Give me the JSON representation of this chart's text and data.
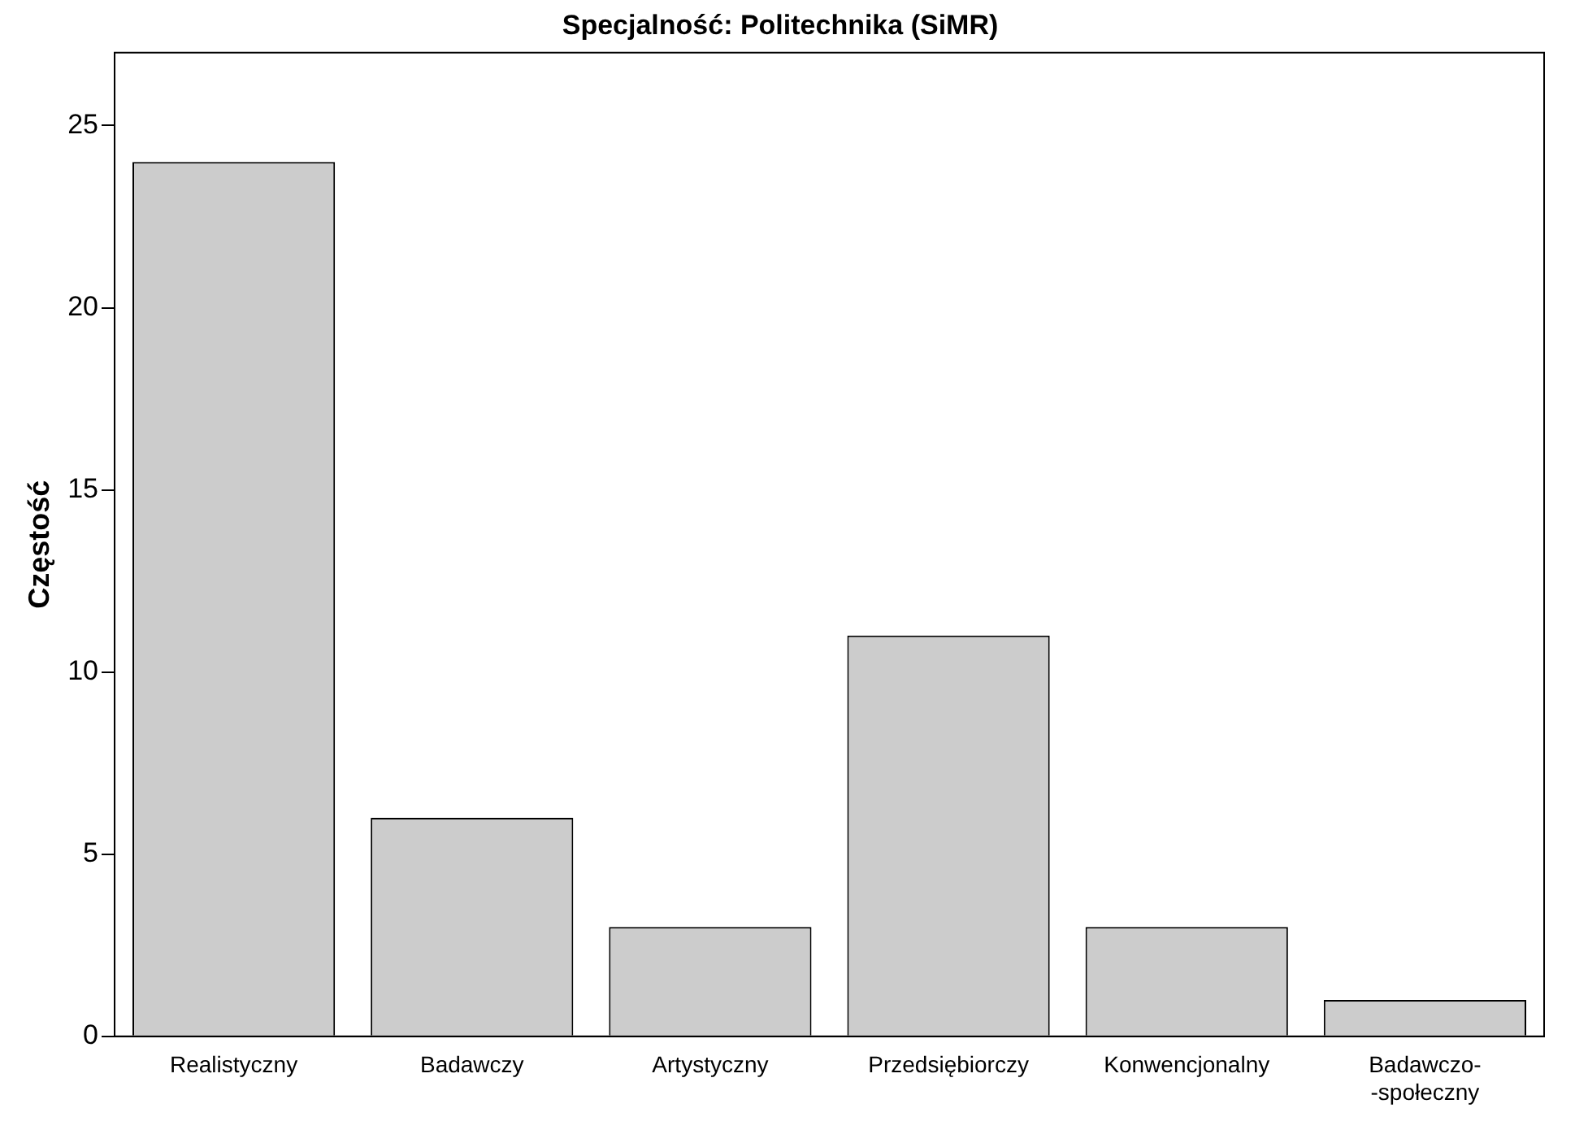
{
  "chart_data": {
    "type": "bar",
    "title": "Specjalność: Politechnika (SiMR)",
    "ylabel": "Częstość",
    "categories": [
      "Realistyczny",
      "Badawczy",
      "Artystyczny",
      "Przedsiębiorczy",
      "Konwencjonalny",
      "Badawczo-\n-społeczny"
    ],
    "values": [
      24,
      6,
      3,
      11,
      3,
      1
    ],
    "color": "#cccccc",
    "ylim": [
      0,
      27
    ],
    "yticks": [
      0,
      5,
      10,
      15,
      20,
      25
    ],
    "grid": false,
    "legend": false
  }
}
